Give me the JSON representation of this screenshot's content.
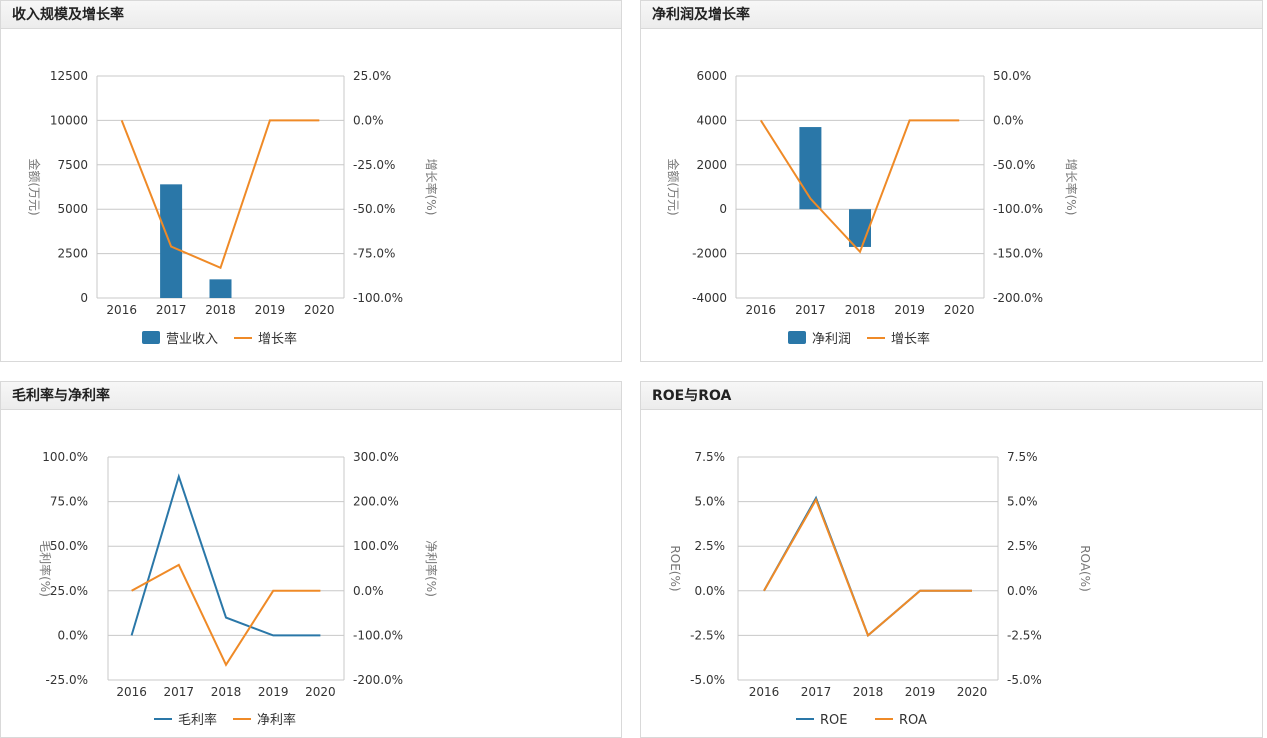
{
  "chart_data": [
    {
      "id": "c1",
      "title": "收入规模及增长率",
      "type": "bar",
      "categories": [
        "2016",
        "2017",
        "2018",
        "2019",
        "2020"
      ],
      "y_left": {
        "label": "金额(万元)",
        "ticks": [
          "12500",
          "10000",
          "7500",
          "5000",
          "2500",
          "0"
        ],
        "lim": [
          0,
          12500
        ]
      },
      "y_right": {
        "label": "增长率(%)",
        "ticks": [
          "25.0%",
          "0.0%",
          "-25.0%",
          "-50.0%",
          "-75.0%",
          "-100.0%"
        ],
        "lim": [
          -100,
          25
        ]
      },
      "series": [
        {
          "name": "营业收入",
          "kind": "bar",
          "axis": "left",
          "color": "#2a77a8",
          "values": [
            0,
            6400,
            1050,
            0,
            0
          ]
        },
        {
          "name": "增长率",
          "kind": "line",
          "axis": "right",
          "color": "#ef8a27",
          "values": [
            0,
            -71,
            -83,
            0,
            0
          ]
        }
      ]
    },
    {
      "id": "c2",
      "title": "净利润及增长率",
      "type": "bar",
      "categories": [
        "2016",
        "2017",
        "2018",
        "2019",
        "2020"
      ],
      "y_left": {
        "label": "金额(万元)",
        "ticks": [
          "6000",
          "4000",
          "2000",
          "0",
          "-2000",
          "-4000"
        ],
        "lim": [
          -4000,
          6000
        ]
      },
      "y_right": {
        "label": "增长率(%)",
        "ticks": [
          "50.0%",
          "0.0%",
          "-50.0%",
          "-100.0%",
          "-150.0%",
          "-200.0%"
        ],
        "lim": [
          -200,
          50
        ]
      },
      "series": [
        {
          "name": "净利润",
          "kind": "bar",
          "axis": "left",
          "color": "#2a77a8",
          "values": [
            0,
            3700,
            -1700,
            0,
            0
          ]
        },
        {
          "name": "增长率",
          "kind": "line",
          "axis": "right",
          "color": "#ef8a27",
          "values": [
            0,
            -88,
            -148,
            0,
            0
          ]
        }
      ]
    },
    {
      "id": "c3",
      "title": "毛利率与净利率",
      "type": "line",
      "categories": [
        "2016",
        "2017",
        "2018",
        "2019",
        "2020"
      ],
      "y_left": {
        "label": "毛利率(%)",
        "ticks": [
          "100.0%",
          "75.0%",
          "50.0%",
          "25.0%",
          "0.0%",
          "-25.0%"
        ],
        "lim": [
          -25,
          100
        ]
      },
      "y_right": {
        "label": "净利率(%)",
        "ticks": [
          "300.0%",
          "200.0%",
          "100.0%",
          "0.0%",
          "-100.0%",
          "-200.0%"
        ],
        "lim": [
          -200,
          300
        ]
      },
      "series": [
        {
          "name": "毛利率",
          "kind": "line",
          "axis": "left",
          "color": "#2a77a8",
          "values": [
            0,
            89,
            10,
            0,
            0
          ]
        },
        {
          "name": "净利率",
          "kind": "line",
          "axis": "right",
          "color": "#ef8a27",
          "values": [
            0,
            58,
            -166,
            0,
            0
          ]
        }
      ]
    },
    {
      "id": "c4",
      "title": "ROE与ROA",
      "type": "line",
      "categories": [
        "2016",
        "2017",
        "2018",
        "2019",
        "2020"
      ],
      "y_left": {
        "label": "ROE(%)",
        "ticks": [
          "7.5%",
          "5.0%",
          "2.5%",
          "0.0%",
          "-2.5%",
          "-5.0%"
        ],
        "lim": [
          -5,
          7.5
        ]
      },
      "y_right": {
        "label": "ROA(%)",
        "ticks": [
          "7.5%",
          "5.0%",
          "2.5%",
          "0.0%",
          "-2.5%",
          "-5.0%"
        ],
        "lim": [
          -5,
          7.5
        ]
      },
      "series": [
        {
          "name": "ROE",
          "kind": "line",
          "axis": "left",
          "color": "#2a77a8",
          "values": [
            0,
            5.2,
            -2.5,
            0,
            0
          ]
        },
        {
          "name": "ROA",
          "kind": "line",
          "axis": "right",
          "color": "#ef8a27",
          "values": [
            0,
            5.1,
            -2.5,
            0,
            0
          ]
        }
      ]
    }
  ]
}
